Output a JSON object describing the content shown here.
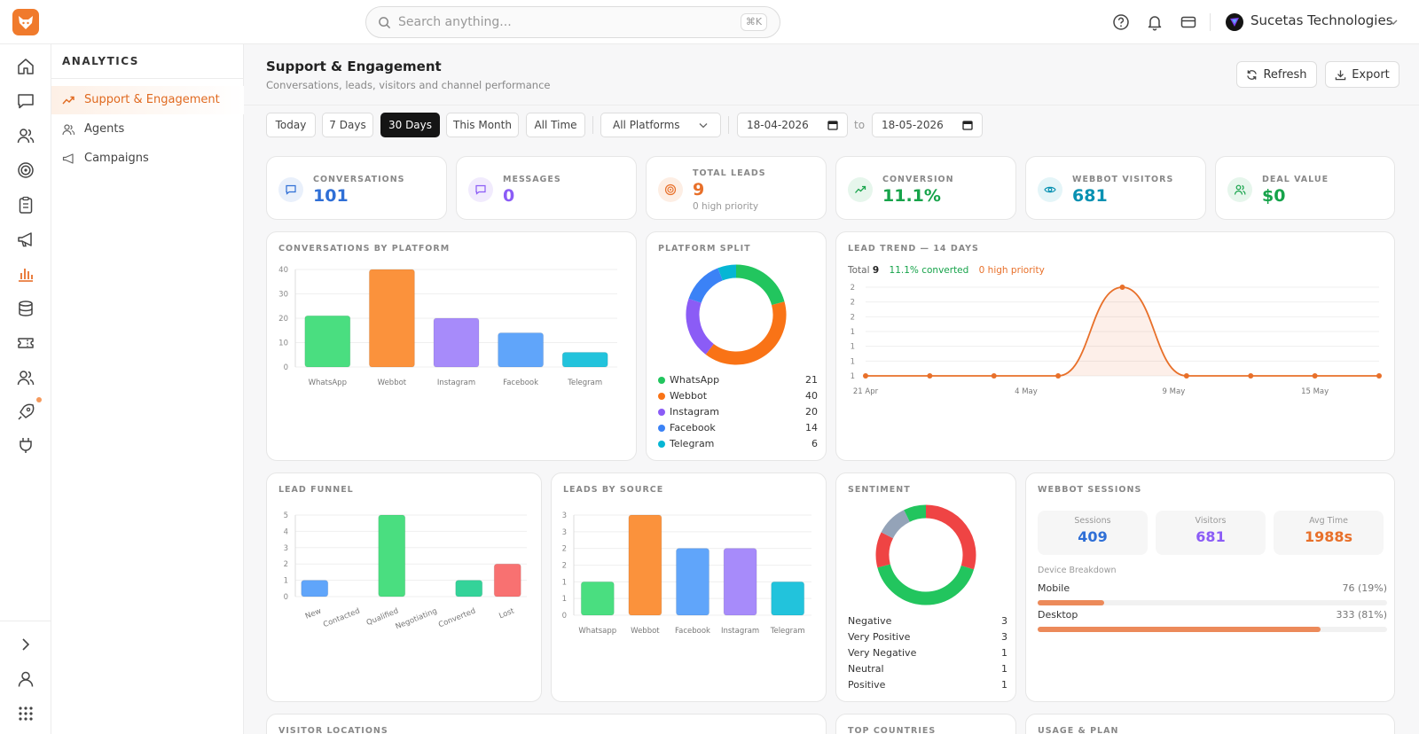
{
  "topbar": {
    "search_placeholder": "Search anything...",
    "shortcut": "⌘K",
    "org_name": "Sucetas Technologies"
  },
  "sidebar": {
    "heading": "ANALYTICS",
    "items": [
      {
        "label": "Support & Engagement",
        "active": true
      },
      {
        "label": "Agents",
        "active": false
      },
      {
        "label": "Campaigns",
        "active": false
      }
    ]
  },
  "header": {
    "title": "Support & Engagement",
    "subtitle": "Conversations, leads, visitors and channel performance",
    "refresh_label": "Refresh",
    "export_label": "Export"
  },
  "filters": {
    "ranges": [
      "Today",
      "7 Days",
      "30 Days",
      "This Month",
      "All Time"
    ],
    "active_range": "30 Days",
    "platform": "All Platforms",
    "date_from": "18-04-2026",
    "date_to": "18-05-2026",
    "to_label": "to"
  },
  "stats": [
    {
      "label": "CONVERSATIONS",
      "value": "101",
      "color": "#2f6fd6",
      "tint": "#e9f0fb"
    },
    {
      "label": "MESSAGES",
      "value": "0",
      "color": "#8b5cf6",
      "tint": "#f1ebfd"
    },
    {
      "label": "TOTAL LEADS",
      "value": "9",
      "sub": "0 high priority",
      "color": "#e8702a",
      "tint": "#fdeee4"
    },
    {
      "label": "CONVERSION",
      "value": "11.1%",
      "color": "#16a34a",
      "tint": "#e6f6ec"
    },
    {
      "label": "WEBBOT VISITORS",
      "value": "681",
      "color": "#0891b2",
      "tint": "#e4f5f8"
    },
    {
      "label": "DEAL VALUE",
      "value": "$0",
      "color": "#16a34a",
      "tint": "#e6f6ec"
    }
  ],
  "conversations_by_platform": {
    "title": "CONVERSATIONS BY PLATFORM",
    "ylim": [
      0,
      40
    ],
    "ticks": [
      "40",
      "30",
      "20",
      "10",
      "0"
    ],
    "categories": [
      "WhatsApp",
      "Webbot",
      "Instagram",
      "Facebook",
      "Telegram"
    ],
    "values": [
      21,
      40,
      20,
      14,
      6
    ],
    "colors": [
      "#4ade80",
      "#fb923c",
      "#a78bfa",
      "#60a5fa",
      "#22c3dc"
    ]
  },
  "platform_split": {
    "title": "PLATFORM SPLIT",
    "items": [
      {
        "name": "WhatsApp",
        "value": "21",
        "color": "#22c55e"
      },
      {
        "name": "Webbot",
        "value": "40",
        "color": "#f97316"
      },
      {
        "name": "Instagram",
        "value": "20",
        "color": "#8b5cf6"
      },
      {
        "name": "Facebook",
        "value": "14",
        "color": "#3b82f6"
      },
      {
        "name": "Telegram",
        "value": "6",
        "color": "#06b6d4"
      }
    ]
  },
  "lead_trend": {
    "title": "LEAD TREND — 14 DAYS",
    "total_label": "Total",
    "total_value": "9",
    "converted": "11.1% converted",
    "high_priority": "0 high priority",
    "y_ticks": [
      "2",
      "2",
      "2",
      "1",
      "1",
      "1",
      "1"
    ],
    "x_ticks": [
      "21 Apr",
      "4 May",
      "9 May",
      "15 May"
    ],
    "values": [
      0,
      0,
      0,
      0,
      1,
      0,
      0,
      0,
      0
    ]
  },
  "lead_funnel": {
    "title": "LEAD FUNNEL",
    "ylim": [
      0,
      5
    ],
    "ticks": [
      "5",
      "4",
      "3",
      "2",
      "1",
      "0"
    ],
    "categories": [
      "New",
      "Contacted",
      "Qualified",
      "Negotiating",
      "Converted",
      "Lost"
    ],
    "values": [
      1,
      0,
      5,
      0,
      1,
      2
    ],
    "colors": [
      "#60a5fa",
      "#fb923c",
      "#4ade80",
      "#a78bfa",
      "#34d399",
      "#f87171"
    ]
  },
  "leads_by_source": {
    "title": "LEADS BY SOURCE",
    "ylim": [
      0,
      3
    ],
    "ticks": [
      "3",
      "3",
      "2",
      "2",
      "1",
      "1",
      "0"
    ],
    "categories": [
      "Whatsapp",
      "Webbot",
      "Facebook",
      "Instagram",
      "Telegram"
    ],
    "values": [
      1,
      3,
      2,
      2,
      1
    ],
    "colors": [
      "#4ade80",
      "#fb923c",
      "#60a5fa",
      "#a78bfa",
      "#22c3dc"
    ]
  },
  "sentiment": {
    "title": "SENTIMENT",
    "items": [
      {
        "name": "Negative",
        "value": "3",
        "color": "#ef4444"
      },
      {
        "name": "Very Positive",
        "value": "3",
        "color": "#22c55e"
      },
      {
        "name": "Very Negative",
        "value": "1",
        "color": "#ef4444"
      },
      {
        "name": "Neutral",
        "value": "1",
        "color": "#94a3b8"
      },
      {
        "name": "Positive",
        "value": "1",
        "color": "#22c55e"
      }
    ]
  },
  "webbot_sessions": {
    "title": "WEBBOT SESSIONS",
    "boxes": [
      {
        "label": "Sessions",
        "value": "409",
        "color": "#2f6fd6"
      },
      {
        "label": "Visitors",
        "value": "681",
        "color": "#8b5cf6"
      },
      {
        "label": "Avg Time",
        "value": "1988s",
        "color": "#e8702a"
      }
    ],
    "device_title": "Device Breakdown",
    "devices": [
      {
        "name": "Mobile",
        "pct_text": "76 (19%)",
        "fraction": 0.19
      },
      {
        "name": "Desktop",
        "pct_text": "333 (81%)",
        "fraction": 0.81
      }
    ]
  },
  "bottom_titles": [
    "VISITOR LOCATIONS",
    "TOP COUNTRIES",
    "USAGE & PLAN"
  ]
}
